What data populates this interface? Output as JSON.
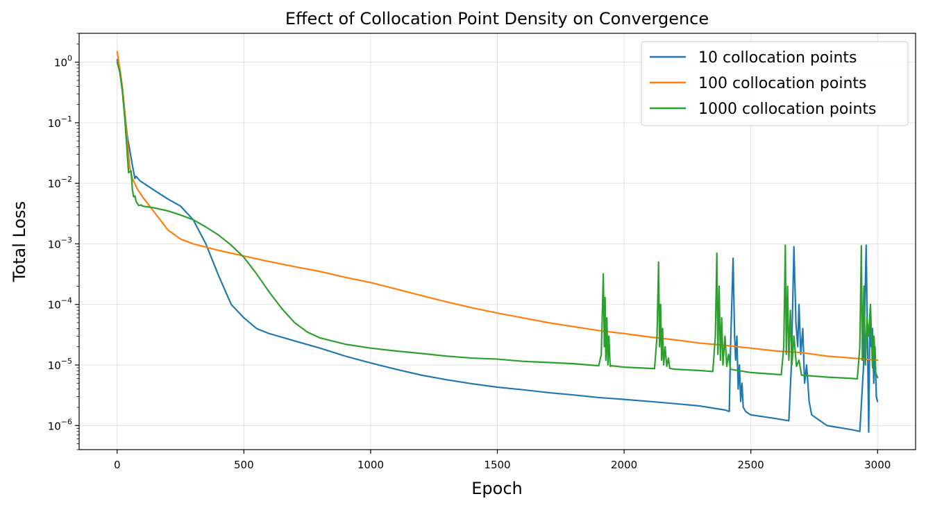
{
  "chart_data": {
    "type": "line",
    "title": "Effect of Collocation Point Density on Convergence",
    "xlabel": "Epoch",
    "ylabel": "Total Loss",
    "xlim": [
      -150,
      3150
    ],
    "ylim": [
      4e-07,
      3
    ],
    "yscale": "log",
    "grid": true,
    "legend_position": "top-right",
    "x_ticks": [
      0,
      500,
      1000,
      1500,
      2000,
      2500,
      3000
    ],
    "y_ticks": [
      {
        "value": 1,
        "base": "10",
        "exp": "0"
      },
      {
        "value": 0.1,
        "base": "10",
        "exp": "−1"
      },
      {
        "value": 0.01,
        "base": "10",
        "exp": "−2"
      },
      {
        "value": 0.001,
        "base": "10",
        "exp": "−3"
      },
      {
        "value": 0.0001,
        "base": "10",
        "exp": "−4"
      },
      {
        "value": 1e-05,
        "base": "10",
        "exp": "−5"
      },
      {
        "value": 1e-06,
        "base": "10",
        "exp": "−6"
      }
    ],
    "series": [
      {
        "name": "10 collocation points",
        "color": "#1f77b4",
        "points": [
          [
            0,
            1.1
          ],
          [
            10,
            0.8
          ],
          [
            20,
            0.4
          ],
          [
            30,
            0.15
          ],
          [
            40,
            0.06
          ],
          [
            50,
            0.035
          ],
          [
            60,
            0.02
          ],
          [
            70,
            0.012
          ],
          [
            75,
            0.013
          ],
          [
            90,
            0.011
          ],
          [
            150,
            0.0075
          ],
          [
            200,
            0.0055
          ],
          [
            250,
            0.0042
          ],
          [
            300,
            0.0025
          ],
          [
            350,
            0.001
          ],
          [
            400,
            0.0003
          ],
          [
            450,
            0.0001
          ],
          [
            500,
            6e-05
          ],
          [
            550,
            4e-05
          ],
          [
            600,
            3.3e-05
          ],
          [
            700,
            2.5e-05
          ],
          [
            800,
            1.9e-05
          ],
          [
            900,
            1.4e-05
          ],
          [
            1000,
            1.08e-05
          ],
          [
            1100,
            8.5e-06
          ],
          [
            1200,
            6.8e-06
          ],
          [
            1300,
            5.7e-06
          ],
          [
            1400,
            4.9e-06
          ],
          [
            1500,
            4.3e-06
          ],
          [
            1600,
            3.9e-06
          ],
          [
            1700,
            3.5e-06
          ],
          [
            1800,
            3.2e-06
          ],
          [
            1900,
            2.9e-06
          ],
          [
            2000,
            2.7e-06
          ],
          [
            2100,
            2.5e-06
          ],
          [
            2200,
            2.3e-06
          ],
          [
            2300,
            2.1e-06
          ],
          [
            2400,
            1.8e-06
          ],
          [
            2415,
            1.7e-06
          ],
          [
            2420,
            2e-05
          ],
          [
            2430,
            0.00058
          ],
          [
            2436,
            3e-05
          ],
          [
            2440,
            1.2e-05
          ],
          [
            2445,
            3e-05
          ],
          [
            2450,
            4e-06
          ],
          [
            2455,
            1e-05
          ],
          [
            2460,
            2.5e-06
          ],
          [
            2465,
            5e-06
          ],
          [
            2470,
            2e-06
          ],
          [
            2480,
            1.7e-06
          ],
          [
            2500,
            1.5e-06
          ],
          [
            2600,
            1.3e-06
          ],
          [
            2650,
            1.2e-06
          ],
          [
            2660,
            1e-05
          ],
          [
            2670,
            0.0009
          ],
          [
            2678,
            5e-05
          ],
          [
            2685,
            2e-05
          ],
          [
            2690,
            0.0001
          ],
          [
            2697,
            1.5e-05
          ],
          [
            2705,
            4e-05
          ],
          [
            2712,
            5e-06
          ],
          [
            2720,
            1e-05
          ],
          [
            2730,
            2.5e-06
          ],
          [
            2740,
            1.5e-06
          ],
          [
            2800,
            1e-06
          ],
          [
            2900,
            8.5e-07
          ],
          [
            2930,
            8e-07
          ],
          [
            2945,
            1e-05
          ],
          [
            2955,
            0.00095
          ],
          [
            2962,
            8e-06
          ],
          [
            2965,
            7.8e-07
          ],
          [
            2970,
            7e-05
          ],
          [
            2975,
            2e-05
          ],
          [
            2980,
            4e-05
          ],
          [
            2985,
            5e-06
          ],
          [
            2990,
            2e-05
          ],
          [
            2995,
            3e-06
          ],
          [
            3000,
            2.5e-06
          ]
        ]
      },
      {
        "name": "100 collocation points",
        "color": "#ff7f0e",
        "points": [
          [
            0,
            1.5
          ],
          [
            10,
            0.8
          ],
          [
            20,
            0.4
          ],
          [
            30,
            0.15
          ],
          [
            40,
            0.05
          ],
          [
            50,
            0.018
          ],
          [
            60,
            0.012
          ],
          [
            80,
            0.008
          ],
          [
            100,
            0.006
          ],
          [
            150,
            0.0032
          ],
          [
            200,
            0.0017
          ],
          [
            250,
            0.0012
          ],
          [
            300,
            0.001
          ],
          [
            400,
            0.00078
          ],
          [
            500,
            0.00063
          ],
          [
            600,
            0.00051
          ],
          [
            700,
            0.00042
          ],
          [
            800,
            0.00035
          ],
          [
            900,
            0.00028
          ],
          [
            1000,
            0.00023
          ],
          [
            1100,
            0.00018
          ],
          [
            1200,
            0.00014
          ],
          [
            1300,
            0.00011
          ],
          [
            1400,
            8.8e-05
          ],
          [
            1500,
            7.2e-05
          ],
          [
            1600,
            6e-05
          ],
          [
            1700,
            5e-05
          ],
          [
            1800,
            4.3e-05
          ],
          [
            1900,
            3.7e-05
          ],
          [
            2000,
            3.3e-05
          ],
          [
            2100,
            2.9e-05
          ],
          [
            2200,
            2.6e-05
          ],
          [
            2300,
            2.3e-05
          ],
          [
            2400,
            2.1e-05
          ],
          [
            2500,
            1.9e-05
          ],
          [
            2600,
            1.7e-05
          ],
          [
            2700,
            1.6e-05
          ],
          [
            2800,
            1.4e-05
          ],
          [
            2900,
            1.3e-05
          ],
          [
            3000,
            1.2e-05
          ]
        ]
      },
      {
        "name": "1000 collocation points",
        "color": "#2ca02c",
        "points": [
          [
            0,
            1.0
          ],
          [
            10,
            0.7
          ],
          [
            20,
            0.35
          ],
          [
            30,
            0.12
          ],
          [
            40,
            0.03
          ],
          [
            45,
            0.015
          ],
          [
            55,
            0.016
          ],
          [
            60,
            0.008
          ],
          [
            65,
            0.006
          ],
          [
            70,
            0.0062
          ],
          [
            75,
            0.005
          ],
          [
            85,
            0.0043
          ],
          [
            95,
            0.0044
          ],
          [
            100,
            0.0042
          ],
          [
            150,
            0.0039
          ],
          [
            200,
            0.0035
          ],
          [
            250,
            0.003
          ],
          [
            300,
            0.0025
          ],
          [
            350,
            0.0019
          ],
          [
            400,
            0.0014
          ],
          [
            450,
            0.00095
          ],
          [
            500,
            0.0006
          ],
          [
            550,
            0.00032
          ],
          [
            600,
            0.00016
          ],
          [
            650,
            8.5e-05
          ],
          [
            700,
            5e-05
          ],
          [
            750,
            3.5e-05
          ],
          [
            800,
            2.8e-05
          ],
          [
            900,
            2.2e-05
          ],
          [
            1000,
            1.9e-05
          ],
          [
            1100,
            1.7e-05
          ],
          [
            1200,
            1.55e-05
          ],
          [
            1300,
            1.4e-05
          ],
          [
            1400,
            1.3e-05
          ],
          [
            1500,
            1.25e-05
          ],
          [
            1600,
            1.15e-05
          ],
          [
            1700,
            1.1e-05
          ],
          [
            1800,
            1.05e-05
          ],
          [
            1900,
            9.7e-06
          ],
          [
            1910,
            1.5e-05
          ],
          [
            1918,
            0.00032
          ],
          [
            1922,
            2e-05
          ],
          [
            1925,
            0.00013
          ],
          [
            1928,
            1.2e-05
          ],
          [
            1932,
            6e-05
          ],
          [
            1936,
            1e-05
          ],
          [
            1940,
            3e-05
          ],
          [
            1945,
            9.5e-06
          ],
          [
            1950,
            9.7e-06
          ],
          [
            2000,
            9.2e-06
          ],
          [
            2100,
            8.8e-06
          ],
          [
            2120,
            8.7e-06
          ],
          [
            2130,
            3e-05
          ],
          [
            2136,
            0.0005
          ],
          [
            2140,
            2e-05
          ],
          [
            2144,
            0.0001
          ],
          [
            2148,
            1.2e-05
          ],
          [
            2152,
            4e-05
          ],
          [
            2156,
            1e-05
          ],
          [
            2162,
            2e-05
          ],
          [
            2168,
            9.5e-06
          ],
          [
            2175,
            1.3e-05
          ],
          [
            2180,
            8.8e-06
          ],
          [
            2200,
            8.5e-06
          ],
          [
            2300,
            8.1e-06
          ],
          [
            2350,
            7.8e-06
          ],
          [
            2360,
            3e-05
          ],
          [
            2366,
            0.0007
          ],
          [
            2370,
            1.5e-05
          ],
          [
            2375,
            0.0002
          ],
          [
            2380,
            1.2e-05
          ],
          [
            2385,
            6e-05
          ],
          [
            2390,
            1e-05
          ],
          [
            2398,
            3e-05
          ],
          [
            2405,
            9.5e-06
          ],
          [
            2412,
            1.5e-05
          ],
          [
            2420,
            8.5e-06
          ],
          [
            2500,
            7.5e-06
          ],
          [
            2600,
            7e-06
          ],
          [
            2620,
            6.9e-06
          ],
          [
            2630,
            2e-05
          ],
          [
            2636,
            0.00095
          ],
          [
            2640,
            1.5e-05
          ],
          [
            2645,
            0.0002
          ],
          [
            2650,
            1.2e-05
          ],
          [
            2656,
            8e-05
          ],
          [
            2662,
            1e-05
          ],
          [
            2670,
            3e-05
          ],
          [
            2680,
            9.5e-06
          ],
          [
            2690,
            1.2e-05
          ],
          [
            2700,
            6.8e-06
          ],
          [
            2800,
            6.3e-06
          ],
          [
            2900,
            6e-06
          ],
          [
            2920,
            5.9e-06
          ],
          [
            2930,
            2e-05
          ],
          [
            2936,
            0.00093
          ],
          [
            2940,
            1.2e-05
          ],
          [
            2946,
            0.0002
          ],
          [
            2952,
            1e-05
          ],
          [
            2958,
            6e-05
          ],
          [
            2965,
            3e-05
          ],
          [
            2972,
            0.0001
          ],
          [
            2980,
            9e-06
          ],
          [
            2986,
            3e-05
          ],
          [
            2992,
            7.5e-06
          ],
          [
            3000,
            6.2e-06
          ]
        ]
      }
    ]
  }
}
